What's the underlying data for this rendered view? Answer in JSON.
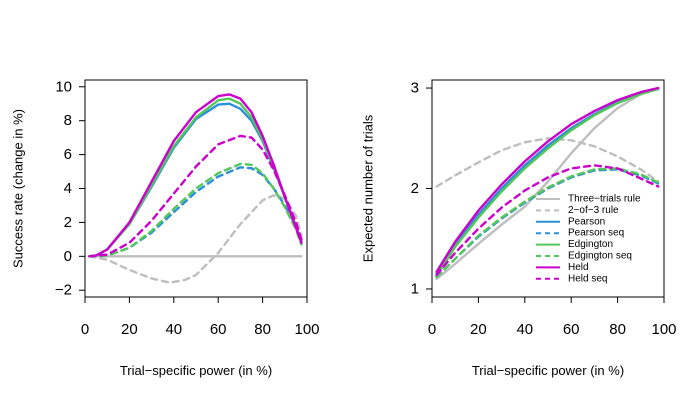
{
  "chart_data": [
    {
      "type": "line",
      "xlabel": "Trial−specific power (in %)",
      "ylabel": "Success rate (change in %)",
      "xlim": [
        0,
        100
      ],
      "ylim": [
        -2.4,
        10.4
      ],
      "xticks": [
        0,
        20,
        40,
        60,
        80,
        100
      ],
      "yticks": [
        -2,
        0,
        2,
        4,
        6,
        8,
        10
      ],
      "ytick_labels": [
        "−2",
        "0",
        "2",
        "4",
        "6",
        "8",
        "10"
      ],
      "grid": false,
      "series": [
        {
          "key": "three",
          "color": "#bebebe",
          "dash": false,
          "x": [
            2,
            10,
            20,
            30,
            40,
            50,
            60,
            70,
            80,
            90,
            97.5
          ],
          "y": [
            0,
            0,
            0,
            0,
            0,
            0,
            0,
            0,
            0,
            0,
            0
          ]
        },
        {
          "key": "two",
          "color": "#bebebe",
          "dash": true,
          "x": [
            2,
            10,
            20,
            30,
            38,
            45,
            50,
            60,
            70,
            80,
            85,
            90,
            95,
            97.5
          ],
          "y": [
            0,
            -0.2,
            -0.8,
            -1.3,
            -1.55,
            -1.4,
            -1.1,
            0.2,
            1.9,
            3.3,
            3.6,
            3.4,
            2.4,
            1.2
          ]
        },
        {
          "key": "pearson",
          "color": "#2b8fd9",
          "dash": false,
          "x": [
            2,
            5,
            10,
            20,
            30,
            40,
            50,
            60,
            65,
            70,
            75,
            80,
            85,
            90,
            95,
            97.5
          ],
          "y": [
            0,
            0.05,
            0.4,
            1.9,
            4.1,
            6.4,
            8.1,
            8.95,
            9.0,
            8.7,
            8.0,
            6.8,
            5.2,
            3.5,
            1.8,
            0.9
          ]
        },
        {
          "key": "pearson_seq",
          "color": "#2b8fd9",
          "dash": true,
          "x": [
            2,
            10,
            20,
            30,
            40,
            50,
            60,
            70,
            75,
            80,
            85,
            90,
            95,
            97.5
          ],
          "y": [
            0,
            0.05,
            0.5,
            1.4,
            2.6,
            3.8,
            4.7,
            5.25,
            5.2,
            4.8,
            4.0,
            3.0,
            1.8,
            1.0
          ]
        },
        {
          "key": "edgington",
          "color": "#54c65a",
          "dash": false,
          "x": [
            2,
            5,
            10,
            20,
            30,
            40,
            50,
            60,
            65,
            70,
            75,
            80,
            85,
            90,
            95,
            97.5
          ],
          "y": [
            0,
            0.05,
            0.4,
            1.9,
            4.2,
            6.5,
            8.2,
            9.2,
            9.3,
            9.0,
            8.2,
            6.9,
            5.3,
            3.5,
            1.8,
            0.9
          ]
        },
        {
          "key": "edgington_seq",
          "color": "#54c65a",
          "dash": true,
          "x": [
            2,
            10,
            20,
            30,
            40,
            50,
            60,
            70,
            75,
            80,
            85,
            90,
            95,
            97.5
          ],
          "y": [
            0,
            0.05,
            0.5,
            1.5,
            2.8,
            4.0,
            4.9,
            5.45,
            5.4,
            4.9,
            4.0,
            2.9,
            1.6,
            0.7
          ]
        },
        {
          "key": "held",
          "color": "#cc00cc",
          "dash": false,
          "x": [
            2,
            5,
            10,
            20,
            30,
            40,
            50,
            60,
            65,
            70,
            75,
            80,
            85,
            90,
            95,
            97.5
          ],
          "y": [
            0,
            0.05,
            0.4,
            2.0,
            4.4,
            6.8,
            8.5,
            9.45,
            9.55,
            9.3,
            8.5,
            7.1,
            5.4,
            3.5,
            1.7,
            0.8
          ]
        },
        {
          "key": "held_seq",
          "color": "#cc00cc",
          "dash": true,
          "x": [
            2,
            10,
            20,
            30,
            40,
            50,
            60,
            70,
            75,
            80,
            85,
            90,
            95,
            97.5
          ],
          "y": [
            0,
            0.1,
            0.8,
            2.1,
            3.7,
            5.3,
            6.6,
            7.1,
            7.0,
            6.3,
            5.1,
            3.6,
            2.0,
            1.0
          ]
        }
      ]
    },
    {
      "type": "line",
      "xlabel": "Trial−specific power (in %)",
      "ylabel": "Expected number of trials",
      "xlim": [
        0,
        100
      ],
      "ylim": [
        0.92,
        3.08
      ],
      "xticks": [
        0,
        20,
        40,
        60,
        80,
        100
      ],
      "yticks": [
        1,
        2,
        3
      ],
      "ytick_labels": [
        "1",
        "2",
        "3"
      ],
      "grid": false,
      "legend": {
        "position": "bottom-right",
        "entries": [
          {
            "key": "three",
            "label": "Three−trials rule",
            "color": "#bebebe",
            "dash": false
          },
          {
            "key": "two",
            "label": "2−of−3 rule",
            "color": "#bebebe",
            "dash": true
          },
          {
            "key": "pearson",
            "label": "Pearson",
            "color": "#2b8fd9",
            "dash": false
          },
          {
            "key": "pearson_seq",
            "label": "Pearson seq",
            "color": "#2b8fd9",
            "dash": true
          },
          {
            "key": "edgington",
            "label": "Edgington",
            "color": "#54c65a",
            "dash": false
          },
          {
            "key": "edgington_seq",
            "label": "Edgington seq",
            "color": "#54c65a",
            "dash": true
          },
          {
            "key": "held",
            "label": "Held",
            "color": "#cc00cc",
            "dash": false
          },
          {
            "key": "held_seq",
            "label": "Held seq",
            "color": "#cc00cc",
            "dash": true
          }
        ]
      },
      "series": [
        {
          "key": "three",
          "color": "#bebebe",
          "dash": false,
          "x": [
            2,
            10,
            20,
            30,
            40,
            50,
            60,
            70,
            80,
            90,
            97.5
          ],
          "y": [
            1.1,
            1.25,
            1.45,
            1.64,
            1.82,
            2.07,
            2.35,
            2.6,
            2.8,
            2.94,
            3.0
          ]
        },
        {
          "key": "two",
          "color": "#bebebe",
          "dash": true,
          "x": [
            2,
            10,
            20,
            30,
            40,
            50,
            60,
            70,
            80,
            90,
            97.5
          ],
          "y": [
            2.02,
            2.13,
            2.26,
            2.38,
            2.46,
            2.5,
            2.48,
            2.42,
            2.32,
            2.19,
            2.07
          ]
        },
        {
          "key": "pearson",
          "color": "#2b8fd9",
          "dash": false,
          "x": [
            2,
            10,
            20,
            30,
            40,
            50,
            60,
            70,
            80,
            90,
            97.5
          ],
          "y": [
            1.15,
            1.44,
            1.74,
            2.0,
            2.23,
            2.43,
            2.6,
            2.74,
            2.86,
            2.95,
            2.99
          ]
        },
        {
          "key": "pearson_seq",
          "color": "#2b8fd9",
          "dash": true,
          "x": [
            2,
            10,
            20,
            30,
            40,
            50,
            60,
            70,
            80,
            90,
            97.5
          ],
          "y": [
            1.12,
            1.3,
            1.52,
            1.7,
            1.86,
            2.0,
            2.11,
            2.18,
            2.19,
            2.13,
            2.05
          ]
        },
        {
          "key": "edgington",
          "color": "#54c65a",
          "dash": false,
          "x": [
            2,
            10,
            20,
            30,
            40,
            50,
            60,
            70,
            80,
            90,
            97.5
          ],
          "y": [
            1.13,
            1.42,
            1.71,
            1.97,
            2.2,
            2.4,
            2.58,
            2.73,
            2.85,
            2.94,
            2.99
          ]
        },
        {
          "key": "edgington_seq",
          "color": "#54c65a",
          "dash": true,
          "x": [
            2,
            10,
            20,
            30,
            40,
            50,
            60,
            70,
            80,
            90,
            97.5
          ],
          "y": [
            1.12,
            1.3,
            1.53,
            1.71,
            1.87,
            2.01,
            2.12,
            2.19,
            2.2,
            2.14,
            2.06
          ]
        },
        {
          "key": "held",
          "color": "#cc00cc",
          "dash": false,
          "x": [
            2,
            10,
            20,
            30,
            40,
            50,
            60,
            70,
            80,
            90,
            97.5
          ],
          "y": [
            1.17,
            1.47,
            1.78,
            2.04,
            2.27,
            2.47,
            2.64,
            2.77,
            2.88,
            2.96,
            3.0
          ]
        },
        {
          "key": "held_seq",
          "color": "#cc00cc",
          "dash": true,
          "x": [
            2,
            10,
            20,
            30,
            40,
            50,
            60,
            70,
            80,
            90,
            97.5
          ],
          "y": [
            1.14,
            1.36,
            1.6,
            1.81,
            1.98,
            2.11,
            2.2,
            2.23,
            2.2,
            2.1,
            2.02
          ]
        }
      ]
    }
  ]
}
